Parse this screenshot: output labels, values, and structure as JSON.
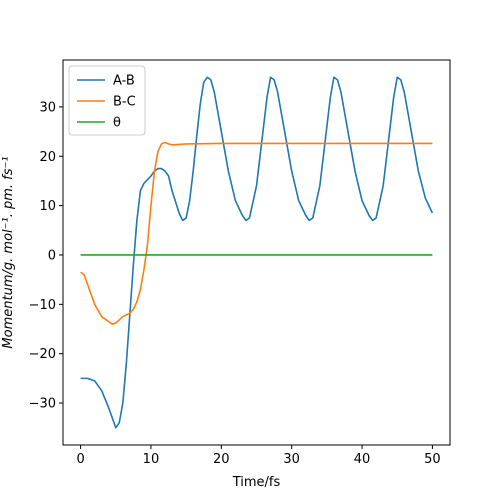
{
  "chart_data": {
    "type": "line",
    "title": "",
    "xlabel": "Time/fs",
    "ylabel": "Momentum/g. mol⁻¹. pm. fs⁻¹",
    "xlim": [
      -2.5,
      52.5
    ],
    "ylim": [
      -38.5,
      39.5
    ],
    "x_ticks": [
      0,
      10,
      20,
      30,
      40,
      50
    ],
    "y_ticks": [
      -30,
      -20,
      -10,
      0,
      10,
      20,
      30
    ],
    "grid": false,
    "legend_position": "upper-left",
    "series": [
      {
        "name": "A-B",
        "color": "#1f77b4",
        "points": [
          [
            0,
            -25
          ],
          [
            1,
            -25
          ],
          [
            2,
            -25.5
          ],
          [
            3,
            -27.5
          ],
          [
            4,
            -31
          ],
          [
            5,
            -35
          ],
          [
            5.5,
            -34
          ],
          [
            6,
            -30
          ],
          [
            6.5,
            -22
          ],
          [
            7,
            -12
          ],
          [
            7.5,
            -2
          ],
          [
            8,
            7
          ],
          [
            8.5,
            13
          ],
          [
            9,
            14.5
          ],
          [
            10,
            16
          ],
          [
            10.5,
            17
          ],
          [
            11,
            17.5
          ],
          [
            11.5,
            17.5
          ],
          [
            12,
            17
          ],
          [
            12.5,
            16
          ],
          [
            13,
            13
          ],
          [
            14,
            8.5
          ],
          [
            14.5,
            7
          ],
          [
            15,
            7.5
          ],
          [
            15.5,
            11
          ],
          [
            16,
            17
          ],
          [
            16.5,
            24
          ],
          [
            17,
            30.5
          ],
          [
            17.5,
            35
          ],
          [
            18,
            36
          ],
          [
            18.5,
            35.5
          ],
          [
            19,
            33
          ],
          [
            20,
            25
          ],
          [
            21,
            17
          ],
          [
            22,
            11
          ],
          [
            23,
            8
          ],
          [
            23.5,
            7
          ],
          [
            24,
            7.5
          ],
          [
            25,
            14
          ],
          [
            26,
            26
          ],
          [
            26.5,
            32
          ],
          [
            27,
            36
          ],
          [
            27.5,
            35.5
          ],
          [
            28,
            33
          ],
          [
            29,
            25
          ],
          [
            30,
            17
          ],
          [
            31,
            11
          ],
          [
            32,
            8
          ],
          [
            32.5,
            7
          ],
          [
            33,
            7.5
          ],
          [
            34,
            14
          ],
          [
            35,
            26
          ],
          [
            35.5,
            32
          ],
          [
            36,
            36
          ],
          [
            36.5,
            35.5
          ],
          [
            37,
            33
          ],
          [
            38,
            25
          ],
          [
            39,
            17
          ],
          [
            40,
            11
          ],
          [
            41,
            8
          ],
          [
            41.5,
            7
          ],
          [
            42,
            7.5
          ],
          [
            43,
            14
          ],
          [
            44,
            26
          ],
          [
            44.5,
            32
          ],
          [
            45,
            36
          ],
          [
            45.5,
            35.5
          ],
          [
            46,
            33
          ],
          [
            47,
            25
          ],
          [
            48,
            17
          ],
          [
            49,
            11.5
          ],
          [
            50,
            8.5
          ]
        ]
      },
      {
        "name": "B-C",
        "color": "#ff7f0e",
        "points": [
          [
            0,
            -3.5
          ],
          [
            0.5,
            -4
          ],
          [
            1,
            -6
          ],
          [
            1.5,
            -8
          ],
          [
            2,
            -10
          ],
          [
            3,
            -12.5
          ],
          [
            4,
            -13.5
          ],
          [
            4.5,
            -14
          ],
          [
            5,
            -13.8
          ],
          [
            6,
            -12.5
          ],
          [
            7,
            -11.8
          ],
          [
            7.5,
            -11
          ],
          [
            8,
            -9.5
          ],
          [
            8.5,
            -7
          ],
          [
            9,
            -3
          ],
          [
            9.5,
            2
          ],
          [
            10,
            10
          ],
          [
            10.5,
            17
          ],
          [
            11,
            21
          ],
          [
            11.5,
            22.5
          ],
          [
            12,
            22.8
          ],
          [
            12.5,
            22.5
          ],
          [
            13,
            22.3
          ],
          [
            15,
            22.5
          ],
          [
            20,
            22.6
          ],
          [
            30,
            22.6
          ],
          [
            40,
            22.6
          ],
          [
            50,
            22.6
          ]
        ]
      },
      {
        "name": "θ",
        "color": "#2ca02c",
        "points": [
          [
            0,
            0
          ],
          [
            50,
            0
          ]
        ]
      }
    ]
  }
}
